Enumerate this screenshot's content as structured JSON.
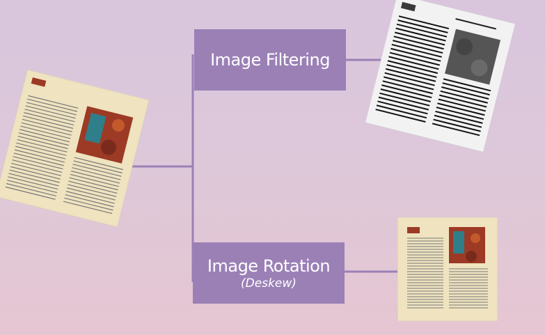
{
  "nodes": {
    "filtering": {
      "label": "Image Filtering"
    },
    "rotation": {
      "label": "Image Rotation",
      "sublabel": "(Deskew)"
    }
  },
  "colors": {
    "box_fill": "#9b80b6",
    "connector": "#9b80b6",
    "page_paper": "#efe3c0",
    "filtered_paper": "#f2f2f2",
    "text_lines": "#555555",
    "photo_red": "#9c3a25",
    "photo_teal": "#2f7f8a"
  },
  "documents": [
    {
      "role": "input",
      "style": "color",
      "skew": "rotated"
    },
    {
      "role": "filtered-output",
      "style": "grayscale",
      "skew": "rotated"
    },
    {
      "role": "deskewed-output",
      "style": "color",
      "skew": "straight"
    }
  ]
}
